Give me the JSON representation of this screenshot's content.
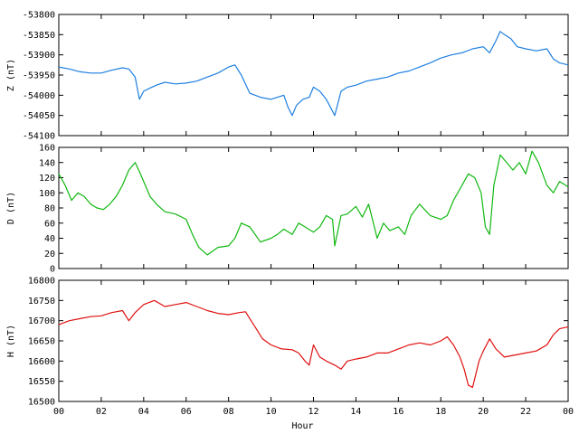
{
  "chart_data": [
    {
      "type": "line",
      "ylabel": "Z (nT)",
      "ylim": [
        -54100,
        -53800
      ],
      "yticks": [
        -54100,
        -54050,
        -54000,
        -53950,
        -53900,
        -53850,
        -53800
      ],
      "xlim": [
        0,
        24
      ],
      "grid": false,
      "series": [
        {
          "color": "#1e7fe0",
          "x": [
            0,
            0.5,
            1,
            1.5,
            2,
            2.5,
            3,
            3.3,
            3.6,
            3.8,
            4,
            4.3,
            4.6,
            5,
            5.5,
            6,
            6.5,
            7,
            7.5,
            8,
            8.3,
            8.6,
            9,
            9.5,
            10,
            10.3,
            10.6,
            10.8,
            11,
            11.2,
            11.5,
            11.8,
            12,
            12.3,
            12.6,
            12.8,
            13,
            13.3,
            13.6,
            14,
            14.5,
            15,
            15.5,
            16,
            16.5,
            17,
            17.5,
            18,
            18.5,
            19,
            19.5,
            20,
            20.3,
            20.6,
            20.8,
            21,
            21.3,
            21.6,
            22,
            22.5,
            23,
            23.3,
            23.6,
            24
          ],
          "values": [
            -53930,
            -53935,
            -53942,
            -53945,
            -53945,
            -53938,
            -53932,
            -53935,
            -53955,
            -54010,
            -53990,
            -53982,
            -53975,
            -53968,
            -53972,
            -53970,
            -53965,
            -53955,
            -53945,
            -53930,
            -53925,
            -53950,
            -53995,
            -54005,
            -54010,
            -54005,
            -54000,
            -54030,
            -54050,
            -54025,
            -54010,
            -54005,
            -53980,
            -53990,
            -54010,
            -54030,
            -54050,
            -53990,
            -53980,
            -53975,
            -53965,
            -53960,
            -53955,
            -53945,
            -53940,
            -53930,
            -53920,
            -53908,
            -53900,
            -53895,
            -53885,
            -53880,
            -53895,
            -53865,
            -53842,
            -53850,
            -53860,
            -53880,
            -53885,
            -53890,
            -53885,
            -53910,
            -53920,
            -53925
          ]
        }
      ]
    },
    {
      "type": "line",
      "ylabel": "D (nT)",
      "ylim": [
        0,
        160
      ],
      "yticks": [
        0,
        20,
        40,
        60,
        80,
        100,
        120,
        140,
        160
      ],
      "xlim": [
        0,
        24
      ],
      "grid": false,
      "series": [
        {
          "color": "#11b811",
          "x": [
            0,
            0.3,
            0.6,
            0.9,
            1.2,
            1.5,
            1.8,
            2.1,
            2.4,
            2.7,
            3,
            3.3,
            3.6,
            3.8,
            4,
            4.3,
            4.6,
            5,
            5.5,
            6,
            6.3,
            6.6,
            7,
            7.5,
            8,
            8.3,
            8.6,
            9,
            9.5,
            10,
            10.3,
            10.6,
            11,
            11.3,
            11.6,
            12,
            12.3,
            12.6,
            12.9,
            13,
            13.3,
            13.6,
            14,
            14.3,
            14.6,
            15,
            15.3,
            15.6,
            16,
            16.3,
            16.6,
            17,
            17.5,
            18,
            18.3,
            18.6,
            19,
            19.3,
            19.6,
            19.9,
            20.1,
            20.3,
            20.5,
            20.8,
            21.1,
            21.4,
            21.7,
            22,
            22.3,
            22.6,
            23,
            23.3,
            23.6,
            24
          ],
          "values": [
            125,
            110,
            90,
            100,
            95,
            85,
            80,
            78,
            85,
            95,
            110,
            130,
            140,
            128,
            115,
            95,
            85,
            75,
            72,
            65,
            45,
            28,
            18,
            28,
            30,
            40,
            60,
            55,
            35,
            40,
            45,
            52,
            45,
            60,
            55,
            48,
            55,
            70,
            65,
            30,
            70,
            72,
            82,
            68,
            85,
            40,
            60,
            50,
            55,
            45,
            70,
            85,
            70,
            65,
            70,
            90,
            110,
            125,
            120,
            100,
            55,
            45,
            110,
            150,
            140,
            130,
            140,
            125,
            155,
            140,
            110,
            100,
            115,
            108
          ]
        }
      ]
    },
    {
      "type": "line",
      "ylabel": "H (nT)",
      "ylim": [
        16500,
        16800
      ],
      "yticks": [
        16500,
        16550,
        16600,
        16650,
        16700,
        16750,
        16800
      ],
      "xlim": [
        0,
        24
      ],
      "xticks": [
        "00",
        "02",
        "04",
        "06",
        "08",
        "10",
        "12",
        "14",
        "16",
        "18",
        "20",
        "22",
        "00"
      ],
      "xlabel": "Hour",
      "grid": false,
      "series": [
        {
          "color": "#e01010",
          "x": [
            0,
            0.5,
            1,
            1.5,
            2,
            2.5,
            3,
            3.3,
            3.6,
            4,
            4.5,
            5,
            5.5,
            6,
            6.5,
            7,
            7.5,
            8,
            8.5,
            8.8,
            9,
            9.3,
            9.6,
            10,
            10.5,
            11,
            11.3,
            11.6,
            11.8,
            12,
            12.3,
            12.6,
            13,
            13.3,
            13.6,
            14,
            14.5,
            15,
            15.5,
            16,
            16.5,
            17,
            17.5,
            18,
            18.3,
            18.6,
            18.9,
            19.1,
            19.3,
            19.5,
            19.8,
            20,
            20.3,
            20.6,
            21,
            21.5,
            22,
            22.5,
            23,
            23.3,
            23.6,
            24
          ],
          "values": [
            16690,
            16700,
            16705,
            16710,
            16712,
            16720,
            16725,
            16700,
            16720,
            16740,
            16750,
            16735,
            16740,
            16745,
            16735,
            16725,
            16718,
            16715,
            16720,
            16722,
            16705,
            16680,
            16655,
            16640,
            16630,
            16628,
            16620,
            16600,
            16590,
            16640,
            16610,
            16600,
            16590,
            16580,
            16600,
            16605,
            16610,
            16620,
            16620,
            16630,
            16640,
            16645,
            16640,
            16650,
            16660,
            16640,
            16610,
            16580,
            16540,
            16535,
            16600,
            16625,
            16655,
            16630,
            16610,
            16615,
            16620,
            16625,
            16640,
            16665,
            16680,
            16685
          ]
        }
      ]
    }
  ]
}
